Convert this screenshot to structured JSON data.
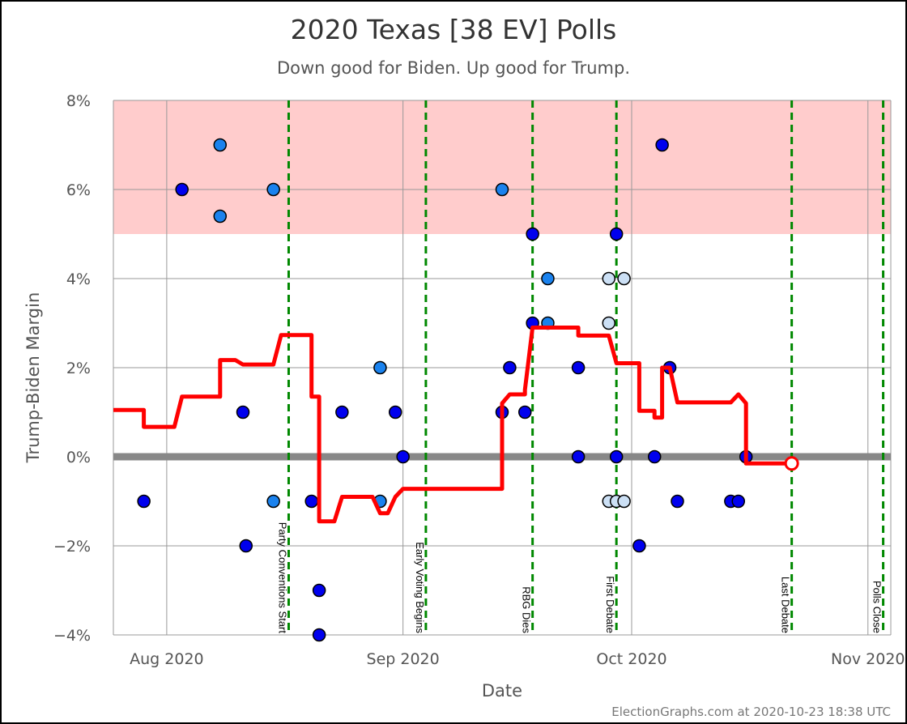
{
  "chart_data": {
    "type": "scatter",
    "title": "2020 Texas [38 EV] Polls",
    "subtitle": "Down good for Biden. Up good for Trump.",
    "xlabel": "Date",
    "ylabel": "Trump-Biden Margin",
    "credit": "ElectionGraphs.com at 2020-10-23 18:38 UTC",
    "xlim": [
      "2020-07-25",
      "2020-11-04"
    ],
    "ylim": [
      -4,
      8
    ],
    "grid": true,
    "x_ticks": [
      {
        "date": "2020-08-01",
        "label": "Aug 2020"
      },
      {
        "date": "2020-09-01",
        "label": "Sep 2020"
      },
      {
        "date": "2020-10-01",
        "label": "Oct 2020"
      },
      {
        "date": "2020-11-01",
        "label": "Nov 2020"
      }
    ],
    "y_ticks": [
      {
        "value": 8,
        "label": "8%"
      },
      {
        "value": 6,
        "label": "6%"
      },
      {
        "value": 4,
        "label": "4%"
      },
      {
        "value": 2,
        "label": "2%"
      },
      {
        "value": 0,
        "label": "0%"
      },
      {
        "value": -2,
        "label": "−2%"
      },
      {
        "value": -4,
        "label": "−4%"
      }
    ],
    "shaded_band": {
      "from": 5,
      "to": 8,
      "color": "#ffcccc"
    },
    "zero_line_color": "#888888",
    "events": [
      {
        "date": "2020-08-17",
        "label": "Party Conventions Start"
      },
      {
        "date": "2020-09-04",
        "label": "Early Voting Begins"
      },
      {
        "date": "2020-09-18",
        "label": "RBG Dies"
      },
      {
        "date": "2020-09-29",
        "label": "First Debate"
      },
      {
        "date": "2020-10-22",
        "label": "Last Debate"
      },
      {
        "date": "2020-11-03",
        "label": "Polls Close"
      }
    ],
    "event_color": "#008800",
    "point_colors": {
      "dark": "#0000ee",
      "medium": "#1a82ee",
      "light": "#cce0f5"
    },
    "polls": [
      {
        "date": "2020-07-29",
        "margin": -1,
        "shade": "dark"
      },
      {
        "date": "2020-08-03",
        "margin": 6,
        "shade": "dark"
      },
      {
        "date": "2020-08-08",
        "margin": 7,
        "shade": "medium"
      },
      {
        "date": "2020-08-08",
        "margin": 5.4,
        "shade": "medium"
      },
      {
        "date": "2020-08-11",
        "margin": 1,
        "shade": "dark"
      },
      {
        "date": "2020-08-11.4",
        "margin": -2,
        "shade": "dark"
      },
      {
        "date": "2020-08-15",
        "margin": 6,
        "shade": "medium"
      },
      {
        "date": "2020-08-15",
        "margin": -1,
        "shade": "medium"
      },
      {
        "date": "2020-08-20",
        "margin": -1,
        "shade": "dark"
      },
      {
        "date": "2020-08-21",
        "margin": -3,
        "shade": "dark"
      },
      {
        "date": "2020-08-21",
        "margin": -4,
        "shade": "dark"
      },
      {
        "date": "2020-08-24",
        "margin": 1,
        "shade": "dark"
      },
      {
        "date": "2020-08-29",
        "margin": 2,
        "shade": "medium"
      },
      {
        "date": "2020-08-29",
        "margin": -1,
        "shade": "medium"
      },
      {
        "date": "2020-08-31",
        "margin": 1,
        "shade": "dark"
      },
      {
        "date": "2020-09-01",
        "margin": 0,
        "shade": "dark"
      },
      {
        "date": "2020-09-14",
        "margin": 6,
        "shade": "medium"
      },
      {
        "date": "2020-09-14",
        "margin": 1,
        "shade": "dark"
      },
      {
        "date": "2020-09-15",
        "margin": 2,
        "shade": "dark"
      },
      {
        "date": "2020-09-17",
        "margin": 1,
        "shade": "dark"
      },
      {
        "date": "2020-09-18",
        "margin": 5,
        "shade": "dark"
      },
      {
        "date": "2020-09-18",
        "margin": 3,
        "shade": "dark"
      },
      {
        "date": "2020-09-20",
        "margin": 4,
        "shade": "medium"
      },
      {
        "date": "2020-09-20",
        "margin": 3,
        "shade": "medium"
      },
      {
        "date": "2020-09-24",
        "margin": 2,
        "shade": "dark"
      },
      {
        "date": "2020-09-24",
        "margin": 0,
        "shade": "dark"
      },
      {
        "date": "2020-09-28",
        "margin": 3,
        "shade": "light"
      },
      {
        "date": "2020-09-28",
        "margin": 4,
        "shade": "light"
      },
      {
        "date": "2020-09-28",
        "margin": -1,
        "shade": "light"
      },
      {
        "date": "2020-09-29",
        "margin": 5,
        "shade": "dark"
      },
      {
        "date": "2020-09-29",
        "margin": 0,
        "shade": "dark"
      },
      {
        "date": "2020-09-29",
        "margin": -1,
        "shade": "light"
      },
      {
        "date": "2020-09-30",
        "margin": 4,
        "shade": "light"
      },
      {
        "date": "2020-09-30",
        "margin": -1,
        "shade": "light"
      },
      {
        "date": "2020-10-02",
        "margin": -2,
        "shade": "dark"
      },
      {
        "date": "2020-10-04",
        "margin": 0,
        "shade": "dark"
      },
      {
        "date": "2020-10-05",
        "margin": 7,
        "shade": "dark"
      },
      {
        "date": "2020-10-06",
        "margin": 2,
        "shade": "dark"
      },
      {
        "date": "2020-10-07",
        "margin": -1,
        "shade": "dark"
      },
      {
        "date": "2020-10-14",
        "margin": -1,
        "shade": "dark"
      },
      {
        "date": "2020-10-15",
        "margin": -1,
        "shade": "dark"
      },
      {
        "date": "2020-10-16",
        "margin": 0,
        "shade": "dark"
      }
    ],
    "average_series": {
      "name": "",
      "color": "#ff0000",
      "points": [
        {
          "date": "2020-07-25",
          "margin": 1.05
        },
        {
          "date": "2020-07-29",
          "margin": 1.05
        },
        {
          "date": "2020-07-29",
          "margin": 0.67
        },
        {
          "date": "2020-08-02",
          "margin": 0.67
        },
        {
          "date": "2020-08-03",
          "margin": 1.35
        },
        {
          "date": "2020-08-08",
          "margin": 1.35
        },
        {
          "date": "2020-08-08",
          "margin": 2.17
        },
        {
          "date": "2020-08-10",
          "margin": 2.17
        },
        {
          "date": "2020-08-11",
          "margin": 2.07
        },
        {
          "date": "2020-08-15",
          "margin": 2.07
        },
        {
          "date": "2020-08-16",
          "margin": 2.73
        },
        {
          "date": "2020-08-20",
          "margin": 2.73
        },
        {
          "date": "2020-08-20",
          "margin": 1.35
        },
        {
          "date": "2020-08-21",
          "margin": 1.35
        },
        {
          "date": "2020-08-21",
          "margin": -1.45
        },
        {
          "date": "2020-08-23",
          "margin": -1.45
        },
        {
          "date": "2020-08-24",
          "margin": -0.9
        },
        {
          "date": "2020-08-28",
          "margin": -0.9
        },
        {
          "date": "2020-08-29",
          "margin": -1.27
        },
        {
          "date": "2020-08-30",
          "margin": -1.27
        },
        {
          "date": "2020-08-31",
          "margin": -0.9
        },
        {
          "date": "2020-09-01",
          "margin": -0.72
        },
        {
          "date": "2020-09-14",
          "margin": -0.72
        },
        {
          "date": "2020-09-14",
          "margin": 1.2
        },
        {
          "date": "2020-09-15",
          "margin": 1.4
        },
        {
          "date": "2020-09-17",
          "margin": 1.4
        },
        {
          "date": "2020-09-17",
          "margin": 1.5
        },
        {
          "date": "2020-09-18",
          "margin": 2.9
        },
        {
          "date": "2020-09-24",
          "margin": 2.9
        },
        {
          "date": "2020-09-24",
          "margin": 2.72
        },
        {
          "date": "2020-09-28",
          "margin": 2.72
        },
        {
          "date": "2020-09-29",
          "margin": 2.1
        },
        {
          "date": "2020-10-02",
          "margin": 2.1
        },
        {
          "date": "2020-10-02",
          "margin": 1.03
        },
        {
          "date": "2020-10-04",
          "margin": 1.03
        },
        {
          "date": "2020-10-04",
          "margin": 0.88
        },
        {
          "date": "2020-10-05",
          "margin": 0.88
        },
        {
          "date": "2020-10-05",
          "margin": 2.0
        },
        {
          "date": "2020-10-06",
          "margin": 2.0
        },
        {
          "date": "2020-10-07",
          "margin": 1.22
        },
        {
          "date": "2020-10-14",
          "margin": 1.22
        },
        {
          "date": "2020-10-15",
          "margin": 1.4
        },
        {
          "date": "2020-10-16",
          "margin": 1.2
        },
        {
          "date": "2020-10-16",
          "margin": -0.15
        },
        {
          "date": "2020-10-22",
          "margin": -0.15
        }
      ],
      "end_marker": {
        "date": "2020-10-22",
        "margin": -0.15
      }
    }
  }
}
